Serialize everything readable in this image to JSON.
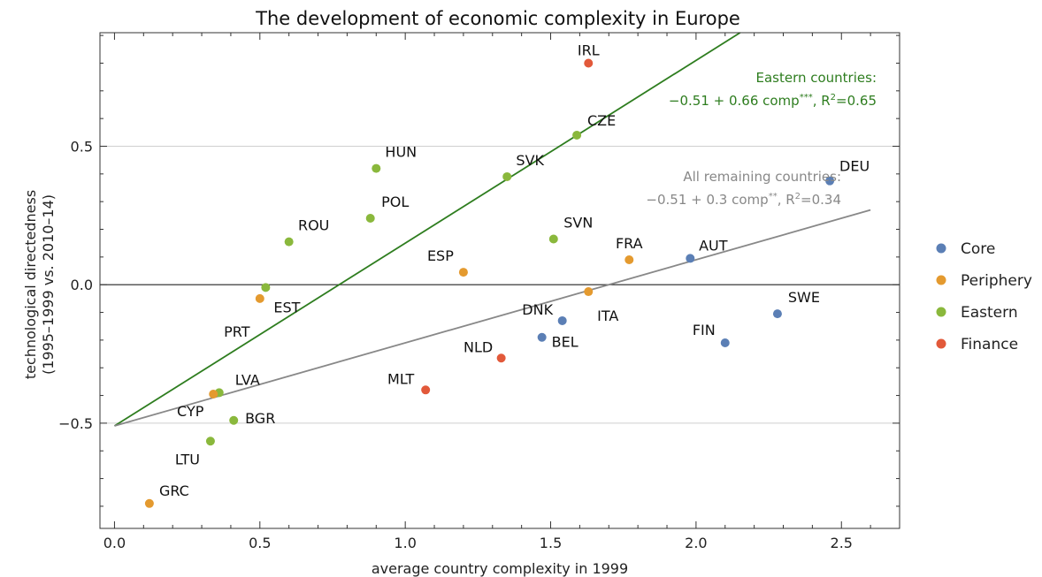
{
  "chart_data": {
    "type": "scatter",
    "title": "The development of economic complexity in Europe",
    "xlabel": "average country complexity in 1999",
    "ylabel_line1": "technological directedness",
    "ylabel_line2": "(1995–1999 vs. 2010–14)",
    "xlim": [
      -0.05,
      2.7
    ],
    "ylim": [
      -0.88,
      0.91
    ],
    "x_ticks": [
      "0.0",
      "0.5",
      "1.0",
      "1.5",
      "2.0",
      "2.5"
    ],
    "y_ticks": [
      "0.5",
      "0.0",
      "−0.5"
    ],
    "gridlines_y": [
      -0.5,
      0,
      0.5
    ],
    "legend_placement": "right",
    "groups": [
      {
        "name": "Core",
        "color": "#5b7fb5"
      },
      {
        "name": "Periphery",
        "color": "#e49a2f"
      },
      {
        "name": "Eastern",
        "color": "#8ab83c"
      },
      {
        "name": "Finance",
        "color": "#e2593a"
      }
    ],
    "points": [
      {
        "label": "IRL",
        "group": "Finance",
        "x": 1.63,
        "y": 0.8
      },
      {
        "label": "CZE",
        "group": "Eastern",
        "x": 1.59,
        "y": 0.54
      },
      {
        "label": "HUN",
        "group": "Eastern",
        "x": 0.9,
        "y": 0.42
      },
      {
        "label": "SVK",
        "group": "Eastern",
        "x": 1.35,
        "y": 0.39
      },
      {
        "label": "DEU",
        "group": "Core",
        "x": 2.46,
        "y": 0.375
      },
      {
        "label": "POL",
        "group": "Eastern",
        "x": 0.88,
        "y": 0.24
      },
      {
        "label": "ROU",
        "group": "Eastern",
        "x": 0.6,
        "y": 0.155
      },
      {
        "label": "SVN",
        "group": "Eastern",
        "x": 1.51,
        "y": 0.165
      },
      {
        "label": "FRA",
        "group": "Periphery",
        "x": 1.77,
        "y": 0.09
      },
      {
        "label": "AUT",
        "group": "Core",
        "x": 1.98,
        "y": 0.095
      },
      {
        "label": "ESP",
        "group": "Periphery",
        "x": 1.2,
        "y": 0.045
      },
      {
        "label": "EST",
        "group": "Eastern",
        "x": 0.52,
        "y": -0.01
      },
      {
        "label": "PRT",
        "group": "Periphery",
        "x": 0.5,
        "y": -0.05
      },
      {
        "label": "ITA",
        "group": "Periphery",
        "x": 1.63,
        "y": -0.025
      },
      {
        "label": "DNK",
        "group": "Core",
        "x": 1.54,
        "y": -0.13
      },
      {
        "label": "SWE",
        "group": "Core",
        "x": 2.28,
        "y": -0.105
      },
      {
        "label": "BEL",
        "group": "Core",
        "x": 1.47,
        "y": -0.19
      },
      {
        "label": "FIN",
        "group": "Core",
        "x": 2.1,
        "y": -0.21
      },
      {
        "label": "NLD",
        "group": "Finance",
        "x": 1.33,
        "y": -0.265
      },
      {
        "label": "MLT",
        "group": "Finance",
        "x": 1.07,
        "y": -0.38
      },
      {
        "label": "LVA",
        "group": "Eastern",
        "x": 0.36,
        "y": -0.39
      },
      {
        "label": "CYP",
        "group": "Periphery",
        "x": 0.34,
        "y": -0.395
      },
      {
        "label": "BGR",
        "group": "Eastern",
        "x": 0.41,
        "y": -0.49
      },
      {
        "label": "LTU",
        "group": "Eastern",
        "x": 0.33,
        "y": -0.565
      },
      {
        "label": "GRC",
        "group": "Periphery",
        "x": 0.12,
        "y": -0.79
      }
    ],
    "fit_lines": [
      {
        "intercept": -0.51,
        "slope": 0.66,
        "x_range": [
          0,
          2.16
        ],
        "color": "#2e7d1f"
      },
      {
        "intercept": -0.51,
        "slope": 0.3,
        "x_range": [
          0,
          2.6
        ],
        "color": "#888888"
      }
    ],
    "annotations": {
      "eastern_title": "Eastern countries:",
      "eastern_eq": "−0.51 + 0.66 comp",
      "eastern_stars": "***",
      "eastern_r2_prefix": ", R",
      "eastern_r2_sup": "2",
      "eastern_r2_val": "=0.65",
      "remaining_title": "All remaining countries:",
      "remaining_eq": "−0.51 + 0.3 comp",
      "remaining_stars": "**",
      "remaining_r2_prefix": ", R",
      "remaining_r2_sup": "2",
      "remaining_r2_val": "=0.34"
    }
  }
}
